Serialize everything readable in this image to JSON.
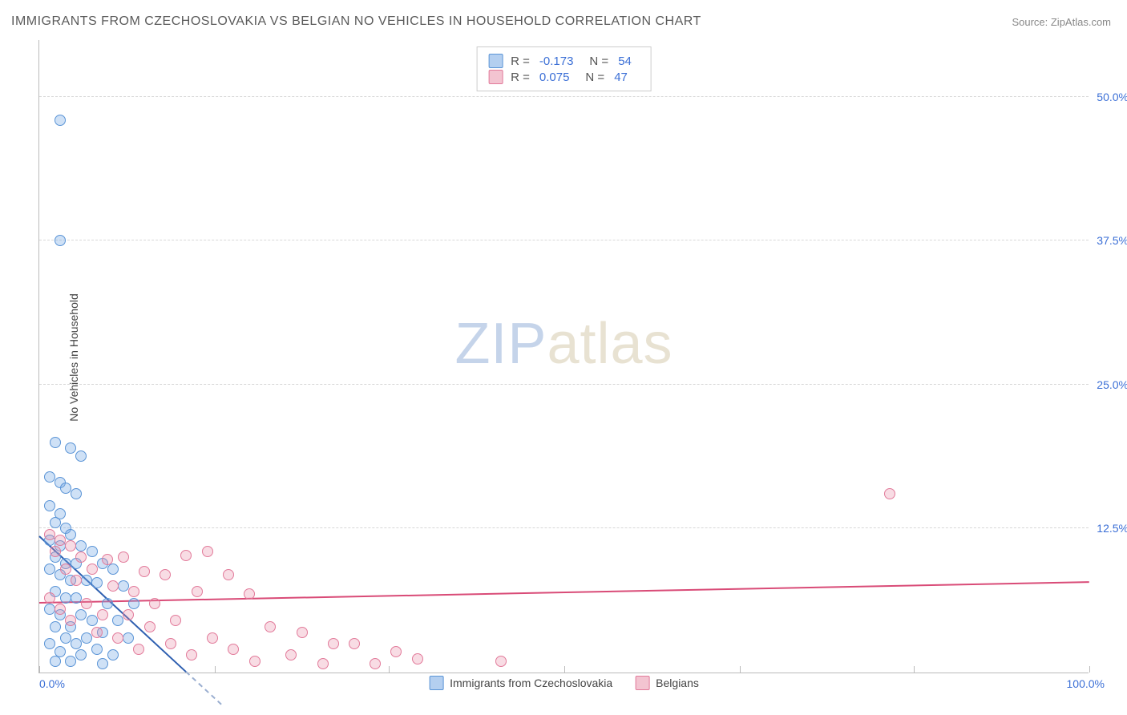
{
  "title": "IMMIGRANTS FROM CZECHOSLOVAKIA VS BELGIAN NO VEHICLES IN HOUSEHOLD CORRELATION CHART",
  "source": "Source: ZipAtlas.com",
  "y_axis_label": "No Vehicles in Household",
  "watermark": {
    "part1": "ZIP",
    "part2": "atlas"
  },
  "chart": {
    "type": "scatter",
    "xlim": [
      0,
      100
    ],
    "ylim": [
      0,
      55
    ],
    "x_tick_positions": [
      0,
      16.7,
      33.3,
      50,
      66.7,
      83.3,
      100
    ],
    "x_tick_labels_visible": {
      "left": "0.0%",
      "right": "100.0%"
    },
    "y_gridlines": [
      12.5,
      25.0,
      37.5,
      50.0
    ],
    "y_tick_labels": [
      "12.5%",
      "25.0%",
      "37.5%",
      "50.0%"
    ],
    "background_color": "#ffffff",
    "grid_color": "#d8d8d8",
    "axis_color": "#bbbbbb",
    "tick_label_color": "#3b6fd6",
    "marker_size": 14,
    "series": [
      {
        "name": "Immigrants from Czechoslovakia",
        "fill_color": "rgba(118,168,228,0.35)",
        "stroke_color": "#5a94d6",
        "R": "-0.173",
        "N": "54",
        "trend": {
          "x1": 0,
          "y1": 11.8,
          "x2": 14,
          "y2": 0,
          "dash_tail": true,
          "color": "#2e5fb0"
        },
        "points": [
          [
            2.0,
            48.0
          ],
          [
            2.0,
            37.5
          ],
          [
            1.5,
            20.0
          ],
          [
            3.0,
            19.5
          ],
          [
            4.0,
            18.8
          ],
          [
            1.0,
            17.0
          ],
          [
            2.0,
            16.5
          ],
          [
            2.5,
            16.0
          ],
          [
            3.5,
            15.5
          ],
          [
            1.0,
            14.5
          ],
          [
            2.0,
            13.8
          ],
          [
            1.5,
            13.0
          ],
          [
            2.5,
            12.5
          ],
          [
            3.0,
            12.0
          ],
          [
            1.0,
            11.5
          ],
          [
            2.0,
            11.0
          ],
          [
            4.0,
            11.0
          ],
          [
            5.0,
            10.5
          ],
          [
            1.5,
            10.0
          ],
          [
            2.5,
            9.5
          ],
          [
            3.5,
            9.5
          ],
          [
            6.0,
            9.5
          ],
          [
            7.0,
            9.0
          ],
          [
            1.0,
            9.0
          ],
          [
            2.0,
            8.5
          ],
          [
            3.0,
            8.0
          ],
          [
            4.5,
            8.0
          ],
          [
            5.5,
            7.8
          ],
          [
            8.0,
            7.5
          ],
          [
            1.5,
            7.0
          ],
          [
            2.5,
            6.5
          ],
          [
            3.5,
            6.5
          ],
          [
            6.5,
            6.0
          ],
          [
            9.0,
            6.0
          ],
          [
            1.0,
            5.5
          ],
          [
            2.0,
            5.0
          ],
          [
            4.0,
            5.0
          ],
          [
            5.0,
            4.5
          ],
          [
            7.5,
            4.5
          ],
          [
            1.5,
            4.0
          ],
          [
            3.0,
            4.0
          ],
          [
            6.0,
            3.5
          ],
          [
            2.5,
            3.0
          ],
          [
            4.5,
            3.0
          ],
          [
            8.5,
            3.0
          ],
          [
            1.0,
            2.5
          ],
          [
            3.5,
            2.5
          ],
          [
            5.5,
            2.0
          ],
          [
            2.0,
            1.8
          ],
          [
            7.0,
            1.5
          ],
          [
            4.0,
            1.5
          ],
          [
            1.5,
            1.0
          ],
          [
            3.0,
            1.0
          ],
          [
            6.0,
            0.8
          ]
        ]
      },
      {
        "name": "Belgians",
        "fill_color": "rgba(232,138,164,0.30)",
        "stroke_color": "#e27a9a",
        "R": "0.075",
        "N": "47",
        "trend": {
          "x1": 0,
          "y1": 6.0,
          "x2": 100,
          "y2": 7.8,
          "dash_tail": false,
          "color": "#d94b77"
        },
        "points": [
          [
            81.0,
            15.5
          ],
          [
            1.0,
            12.0
          ],
          [
            2.0,
            11.5
          ],
          [
            3.0,
            11.0
          ],
          [
            1.5,
            10.5
          ],
          [
            4.0,
            10.0
          ],
          [
            8.0,
            10.0
          ],
          [
            6.5,
            9.8
          ],
          [
            14.0,
            10.2
          ],
          [
            16.0,
            10.5
          ],
          [
            2.5,
            9.0
          ],
          [
            5.0,
            9.0
          ],
          [
            10.0,
            8.8
          ],
          [
            12.0,
            8.5
          ],
          [
            18.0,
            8.5
          ],
          [
            3.5,
            8.0
          ],
          [
            7.0,
            7.5
          ],
          [
            9.0,
            7.0
          ],
          [
            15.0,
            7.0
          ],
          [
            20.0,
            6.8
          ],
          [
            1.0,
            6.5
          ],
          [
            4.5,
            6.0
          ],
          [
            11.0,
            6.0
          ],
          [
            2.0,
            5.5
          ],
          [
            6.0,
            5.0
          ],
          [
            8.5,
            5.0
          ],
          [
            13.0,
            4.5
          ],
          [
            3.0,
            4.5
          ],
          [
            10.5,
            4.0
          ],
          [
            22.0,
            4.0
          ],
          [
            25.0,
            3.5
          ],
          [
            5.5,
            3.5
          ],
          [
            7.5,
            3.0
          ],
          [
            16.5,
            3.0
          ],
          [
            28.0,
            2.5
          ],
          [
            30.0,
            2.5
          ],
          [
            12.5,
            2.5
          ],
          [
            18.5,
            2.0
          ],
          [
            34.0,
            1.8
          ],
          [
            9.5,
            2.0
          ],
          [
            24.0,
            1.5
          ],
          [
            14.5,
            1.5
          ],
          [
            36.0,
            1.2
          ],
          [
            44.0,
            1.0
          ],
          [
            20.5,
            1.0
          ],
          [
            27.0,
            0.8
          ],
          [
            32.0,
            0.8
          ]
        ]
      }
    ]
  },
  "legend_top": {
    "rows": [
      {
        "swatch_fill": "rgba(118,168,228,0.55)",
        "swatch_border": "#5a94d6",
        "r_label": "R =",
        "r_value": "-0.173",
        "n_label": "N =",
        "n_value": "54"
      },
      {
        "swatch_fill": "rgba(232,138,164,0.50)",
        "swatch_border": "#e27a9a",
        "r_label": "R =",
        "r_value": "0.075",
        "n_label": "N =",
        "n_value": "47"
      }
    ]
  },
  "legend_bottom": {
    "items": [
      {
        "swatch_fill": "rgba(118,168,228,0.55)",
        "swatch_border": "#5a94d6",
        "label": "Immigrants from Czechoslovakia"
      },
      {
        "swatch_fill": "rgba(232,138,164,0.50)",
        "swatch_border": "#e27a9a",
        "label": "Belgians"
      }
    ]
  }
}
